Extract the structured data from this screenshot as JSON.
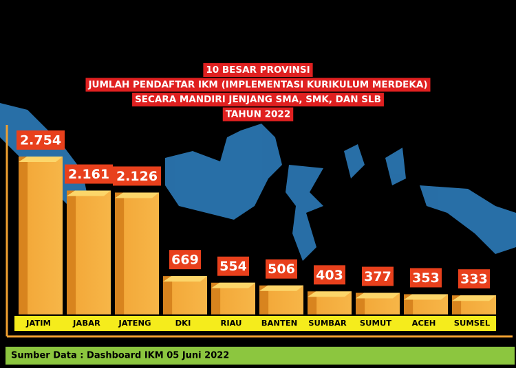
{
  "chart_data": {
    "type": "bar",
    "title_lines": [
      "10 BESAR PROVINSI",
      "JUMLAH PENDAFTAR IKM (IMPLEMENTASI KURIKULUM MERDEKA)",
      "SECARA MANDIRI JENJANG SMA, SMK, DAN SLB",
      "TAHUN 2022"
    ],
    "categories": [
      "JATIM",
      "JABAR",
      "JATENG",
      "DKI",
      "RIAU",
      "BANTEN",
      "SUMBAR",
      "SUMUT",
      "ACEH",
      "SUMSEL"
    ],
    "values": [
      2754,
      2161,
      2126,
      669,
      554,
      506,
      403,
      377,
      353,
      333
    ],
    "value_labels": [
      "2.754",
      "2.161",
      "2.126",
      "669",
      "554",
      "506",
      "403",
      "377",
      "353",
      "333"
    ],
    "color": "#f0a030",
    "source": "Sumber Data : Dashboard IKM 05 Juni 2022"
  }
}
